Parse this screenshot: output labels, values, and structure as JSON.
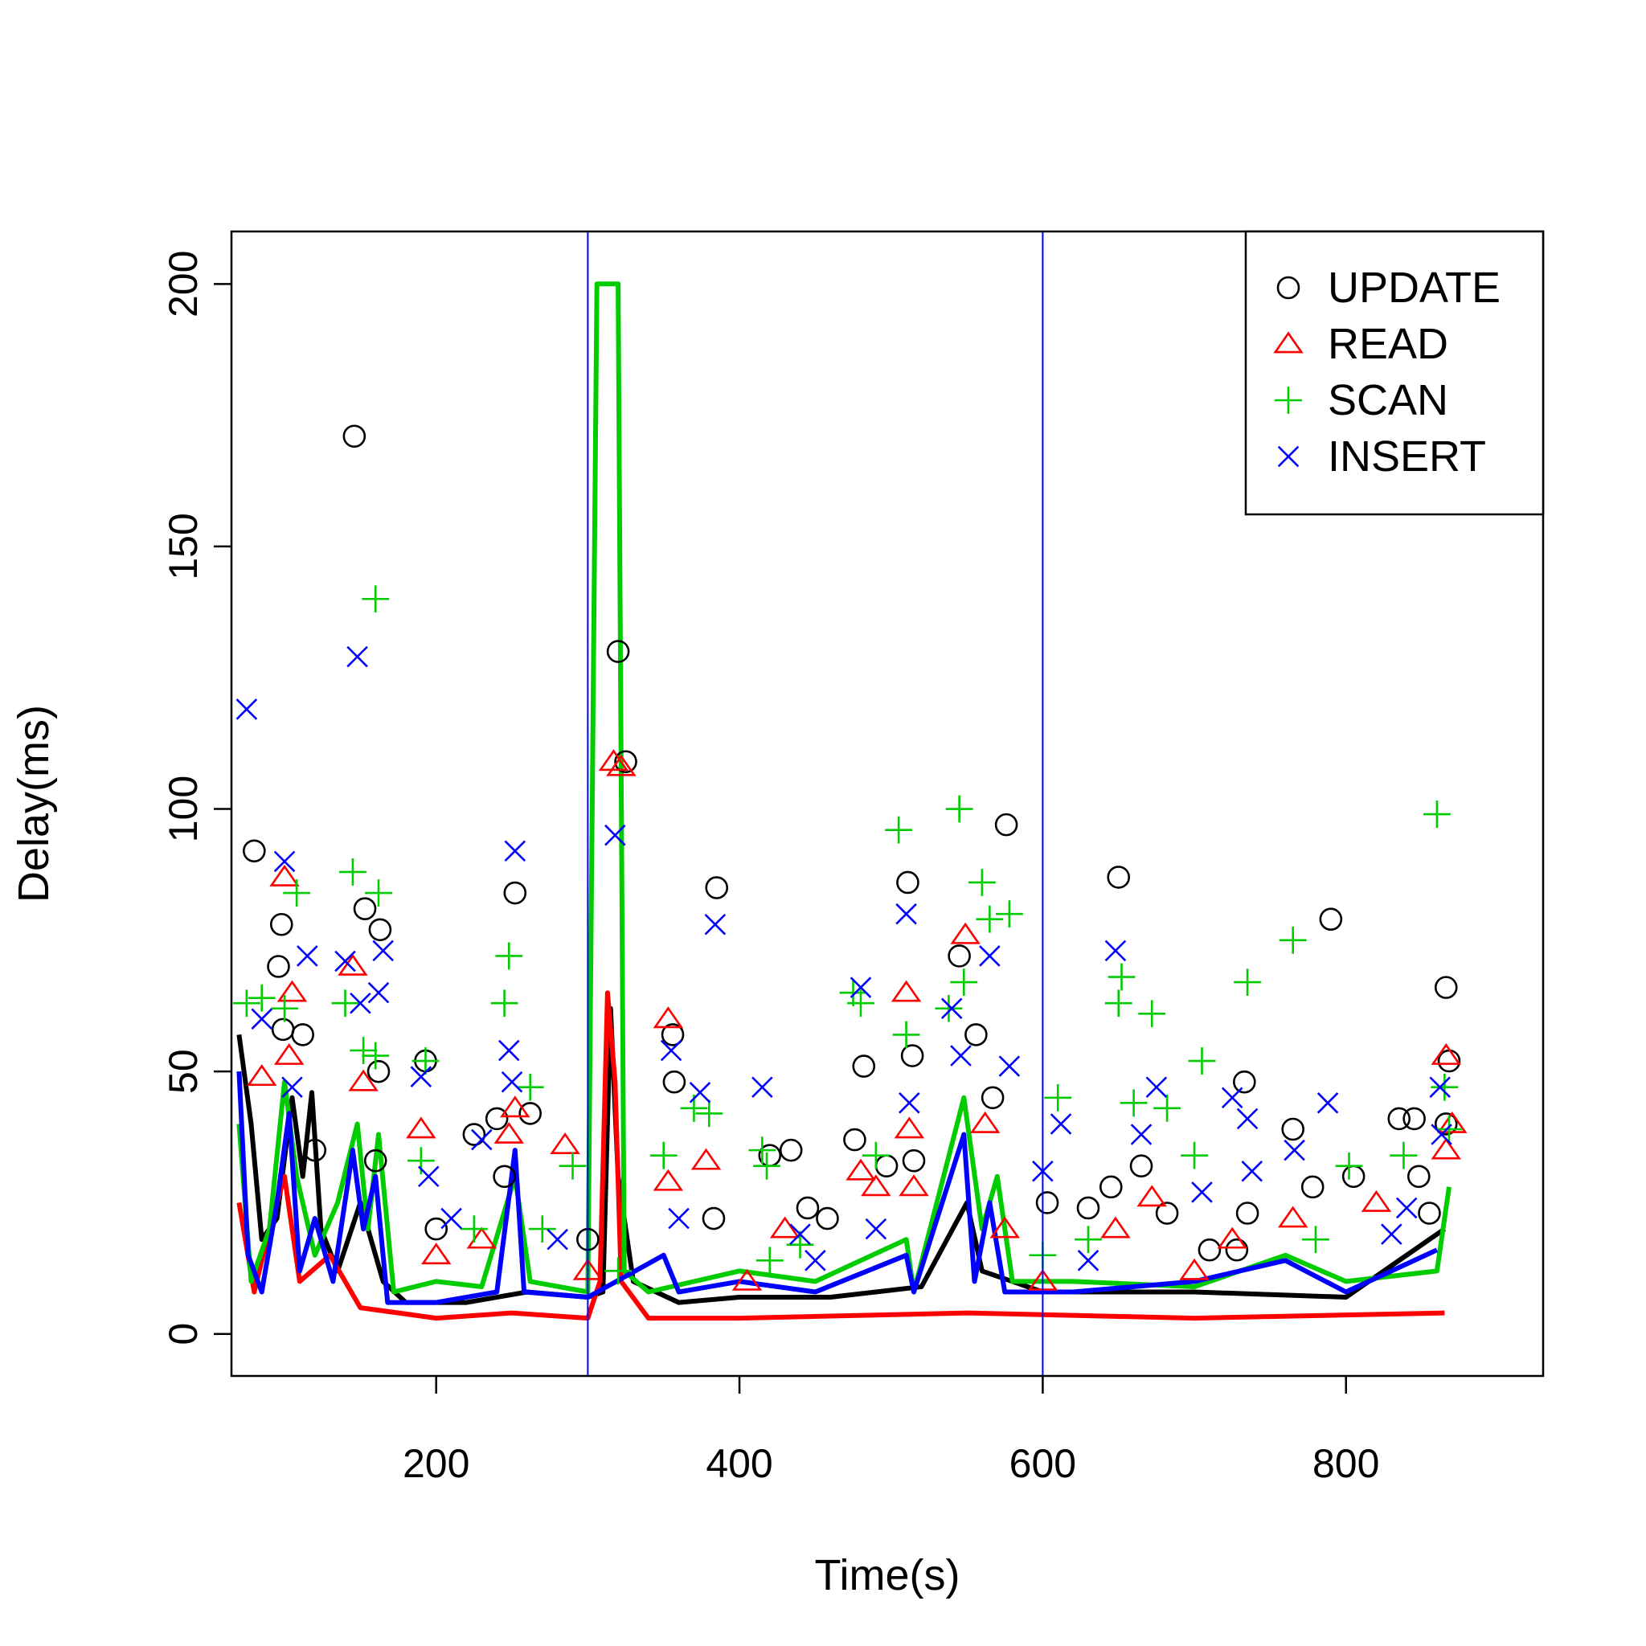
{
  "chart_data": {
    "type": "scatter",
    "title": "",
    "xlabel": "Time(s)",
    "ylabel": "Delay(ms)",
    "xlim": [
      65,
      930
    ],
    "ylim": [
      -8,
      210
    ],
    "x_ticks": [
      "200",
      "400",
      "600",
      "800"
    ],
    "x_tick_values": [
      200,
      400,
      600,
      800
    ],
    "y_ticks": [
      "0",
      "50",
      "100",
      "150",
      "200"
    ],
    "y_tick_values": [
      0,
      50,
      100,
      150,
      200
    ],
    "vlines": [
      300,
      600
    ],
    "vline_color": "#0000ff",
    "grid": false,
    "legend_position": "top-right",
    "series": [
      {
        "name": "UPDATE",
        "marker": "circle",
        "color": "#000000",
        "points": [
          [
            80,
            92
          ],
          [
            98,
            78
          ],
          [
            96,
            70
          ],
          [
            99,
            58
          ],
          [
            112,
            57
          ],
          [
            146,
            171
          ],
          [
            153,
            81
          ],
          [
            163,
            77
          ],
          [
            162,
            50
          ],
          [
            193,
            52
          ],
          [
            240,
            41
          ],
          [
            252,
            84
          ],
          [
            262,
            42
          ],
          [
            225,
            38
          ],
          [
            200,
            20
          ],
          [
            320,
            130
          ],
          [
            325,
            109
          ],
          [
            356,
            57
          ],
          [
            357,
            48
          ],
          [
            385,
            85
          ],
          [
            383,
            22
          ],
          [
            420,
            34
          ],
          [
            434,
            35
          ],
          [
            445,
            24
          ],
          [
            458,
            22
          ],
          [
            476,
            37
          ],
          [
            482,
            51
          ],
          [
            497,
            32
          ],
          [
            511,
            86
          ],
          [
            514,
            53
          ],
          [
            515,
            33
          ],
          [
            545,
            72
          ],
          [
            556,
            57
          ],
          [
            567,
            45
          ],
          [
            576,
            97
          ],
          [
            603,
            25
          ],
          [
            630,
            24
          ],
          [
            645,
            28
          ],
          [
            650,
            87
          ],
          [
            665,
            32
          ],
          [
            682,
            23
          ],
          [
            710,
            16
          ],
          [
            728,
            16
          ],
          [
            733,
            48
          ],
          [
            735,
            23
          ],
          [
            765,
            39
          ],
          [
            778,
            28
          ],
          [
            790,
            79
          ],
          [
            805,
            30
          ],
          [
            835,
            41
          ],
          [
            845,
            41
          ],
          [
            848,
            30
          ],
          [
            855,
            23
          ],
          [
            866,
            66
          ],
          [
            868,
            52
          ],
          [
            866,
            40
          ],
          [
            160,
            33
          ],
          [
            120,
            35
          ],
          [
            245,
            30
          ],
          [
            300,
            18
          ]
        ],
        "trend": [
          [
            70,
            57
          ],
          [
            78,
            40
          ],
          [
            85,
            18
          ],
          [
            95,
            22
          ],
          [
            105,
            45
          ],
          [
            112,
            30
          ],
          [
            118,
            46
          ],
          [
            124,
            20
          ],
          [
            135,
            12
          ],
          [
            150,
            25
          ],
          [
            165,
            10
          ],
          [
            180,
            6
          ],
          [
            220,
            6
          ],
          [
            260,
            8
          ],
          [
            300,
            7
          ],
          [
            310,
            8
          ],
          [
            315,
            62
          ],
          [
            320,
            30
          ],
          [
            330,
            10
          ],
          [
            360,
            6
          ],
          [
            400,
            7
          ],
          [
            460,
            7
          ],
          [
            520,
            9
          ],
          [
            550,
            25
          ],
          [
            560,
            12
          ],
          [
            600,
            8
          ],
          [
            700,
            8
          ],
          [
            800,
            7
          ],
          [
            865,
            20
          ]
        ]
      },
      {
        "name": "READ",
        "marker": "triangle",
        "color": "#ff0000",
        "points": [
          [
            85,
            49
          ],
          [
            100,
            87
          ],
          [
            105,
            65
          ],
          [
            103,
            53
          ],
          [
            145,
            70
          ],
          [
            152,
            48
          ],
          [
            190,
            39
          ],
          [
            252,
            43
          ],
          [
            248,
            38
          ],
          [
            285,
            36
          ],
          [
            317,
            109
          ],
          [
            322,
            108
          ],
          [
            353,
            60
          ],
          [
            353,
            29
          ],
          [
            378,
            33
          ],
          [
            430,
            20
          ],
          [
            480,
            31
          ],
          [
            490,
            28
          ],
          [
            510,
            65
          ],
          [
            512,
            39
          ],
          [
            515,
            28
          ],
          [
            549,
            76
          ],
          [
            562,
            40
          ],
          [
            575,
            20
          ],
          [
            648,
            20
          ],
          [
            672,
            26
          ],
          [
            725,
            18
          ],
          [
            765,
            22
          ],
          [
            820,
            25
          ],
          [
            866,
            53
          ],
          [
            870,
            40
          ],
          [
            866,
            35
          ],
          [
            200,
            15
          ],
          [
            230,
            18
          ],
          [
            300,
            12
          ],
          [
            405,
            10
          ],
          [
            600,
            10
          ],
          [
            700,
            12
          ]
        ],
        "trend": [
          [
            70,
            25
          ],
          [
            80,
            8
          ],
          [
            90,
            20
          ],
          [
            100,
            30
          ],
          [
            110,
            10
          ],
          [
            130,
            15
          ],
          [
            150,
            5
          ],
          [
            200,
            3
          ],
          [
            250,
            4
          ],
          [
            300,
            3
          ],
          [
            308,
            10
          ],
          [
            313,
            65
          ],
          [
            318,
            48
          ],
          [
            322,
            10
          ],
          [
            340,
            3
          ],
          [
            400,
            3
          ],
          [
            550,
            4
          ],
          [
            700,
            3
          ],
          [
            865,
            4
          ]
        ]
      },
      {
        "name": "SCAN",
        "marker": "plus",
        "color": "#00cc00",
        "points": [
          [
            75,
            63
          ],
          [
            85,
            64
          ],
          [
            100,
            62
          ],
          [
            108,
            84
          ],
          [
            145,
            88
          ],
          [
            152,
            54
          ],
          [
            160,
            140
          ],
          [
            162,
            84
          ],
          [
            160,
            53
          ],
          [
            140,
            63
          ],
          [
            193,
            52
          ],
          [
            190,
            33
          ],
          [
            245,
            63
          ],
          [
            248,
            72
          ],
          [
            262,
            47
          ],
          [
            270,
            20
          ],
          [
            290,
            32
          ],
          [
            350,
            34
          ],
          [
            370,
            43
          ],
          [
            380,
            42
          ],
          [
            415,
            35
          ],
          [
            418,
            32
          ],
          [
            440,
            17
          ],
          [
            475,
            65
          ],
          [
            480,
            63
          ],
          [
            490,
            34
          ],
          [
            505,
            96
          ],
          [
            510,
            57
          ],
          [
            538,
            62
          ],
          [
            545,
            100
          ],
          [
            548,
            67
          ],
          [
            560,
            86
          ],
          [
            565,
            79
          ],
          [
            578,
            80
          ],
          [
            610,
            45
          ],
          [
            650,
            63
          ],
          [
            652,
            68
          ],
          [
            660,
            44
          ],
          [
            672,
            61
          ],
          [
            682,
            43
          ],
          [
            700,
            34
          ],
          [
            705,
            52
          ],
          [
            735,
            67
          ],
          [
            765,
            75
          ],
          [
            780,
            18
          ],
          [
            802,
            32
          ],
          [
            838,
            34
          ],
          [
            860,
            99
          ],
          [
            865,
            47
          ],
          [
            868,
            39
          ],
          [
            630,
            18
          ],
          [
            600,
            15
          ],
          [
            420,
            14
          ],
          [
            320,
            12
          ],
          [
            225,
            20
          ]
        ],
        "trend": [
          [
            70,
            40
          ],
          [
            78,
            10
          ],
          [
            90,
            20
          ],
          [
            100,
            48
          ],
          [
            108,
            30
          ],
          [
            120,
            15
          ],
          [
            135,
            25
          ],
          [
            148,
            40
          ],
          [
            155,
            20
          ],
          [
            162,
            38
          ],
          [
            172,
            8
          ],
          [
            200,
            10
          ],
          [
            230,
            9
          ],
          [
            252,
            30
          ],
          [
            262,
            10
          ],
          [
            300,
            8
          ],
          [
            306,
            200
          ],
          [
            312,
            200
          ],
          [
            316,
            200
          ],
          [
            320,
            200
          ],
          [
            324,
            12
          ],
          [
            340,
            8
          ],
          [
            400,
            12
          ],
          [
            450,
            10
          ],
          [
            510,
            18
          ],
          [
            515,
            8
          ],
          [
            548,
            45
          ],
          [
            560,
            20
          ],
          [
            570,
            30
          ],
          [
            580,
            10
          ],
          [
            620,
            10
          ],
          [
            700,
            9
          ],
          [
            760,
            15
          ],
          [
            800,
            10
          ],
          [
            860,
            12
          ],
          [
            868,
            28
          ]
        ]
      },
      {
        "name": "INSERT",
        "marker": "cross",
        "color": "#0000ff",
        "points": [
          [
            75,
            119
          ],
          [
            85,
            60
          ],
          [
            100,
            90
          ],
          [
            105,
            47
          ],
          [
            115,
            72
          ],
          [
            148,
            129
          ],
          [
            150,
            63
          ],
          [
            140,
            71
          ],
          [
            165,
            73
          ],
          [
            162,
            65
          ],
          [
            190,
            49
          ],
          [
            195,
            30
          ],
          [
            248,
            54
          ],
          [
            252,
            92
          ],
          [
            250,
            48
          ],
          [
            230,
            37
          ],
          [
            318,
            95
          ],
          [
            355,
            54
          ],
          [
            360,
            22
          ],
          [
            374,
            46
          ],
          [
            384,
            78
          ],
          [
            415,
            47
          ],
          [
            440,
            19
          ],
          [
            480,
            66
          ],
          [
            490,
            20
          ],
          [
            510,
            80
          ],
          [
            512,
            44
          ],
          [
            540,
            62
          ],
          [
            546,
            53
          ],
          [
            565,
            72
          ],
          [
            578,
            51
          ],
          [
            600,
            31
          ],
          [
            612,
            40
          ],
          [
            648,
            73
          ],
          [
            665,
            38
          ],
          [
            675,
            47
          ],
          [
            705,
            27
          ],
          [
            725,
            45
          ],
          [
            735,
            41
          ],
          [
            738,
            31
          ],
          [
            766,
            35
          ],
          [
            788,
            44
          ],
          [
            830,
            19
          ],
          [
            862,
            47
          ],
          [
            863,
            38
          ],
          [
            840,
            24
          ],
          [
            210,
            22
          ],
          [
            280,
            18
          ],
          [
            450,
            14
          ],
          [
            630,
            14
          ]
        ],
        "trend": [
          [
            70,
            50
          ],
          [
            76,
            15
          ],
          [
            85,
            8
          ],
          [
            95,
            25
          ],
          [
            103,
            42
          ],
          [
            110,
            12
          ],
          [
            120,
            22
          ],
          [
            132,
            10
          ],
          [
            145,
            35
          ],
          [
            152,
            20
          ],
          [
            160,
            30
          ],
          [
            168,
            6
          ],
          [
            200,
            6
          ],
          [
            240,
            8
          ],
          [
            252,
            35
          ],
          [
            258,
            8
          ],
          [
            300,
            7
          ],
          [
            350,
            15
          ],
          [
            360,
            8
          ],
          [
            400,
            10
          ],
          [
            450,
            8
          ],
          [
            510,
            15
          ],
          [
            515,
            8
          ],
          [
            548,
            38
          ],
          [
            555,
            10
          ],
          [
            565,
            25
          ],
          [
            575,
            8
          ],
          [
            620,
            8
          ],
          [
            700,
            10
          ],
          [
            760,
            14
          ],
          [
            800,
            8
          ],
          [
            860,
            16
          ]
        ]
      }
    ]
  }
}
